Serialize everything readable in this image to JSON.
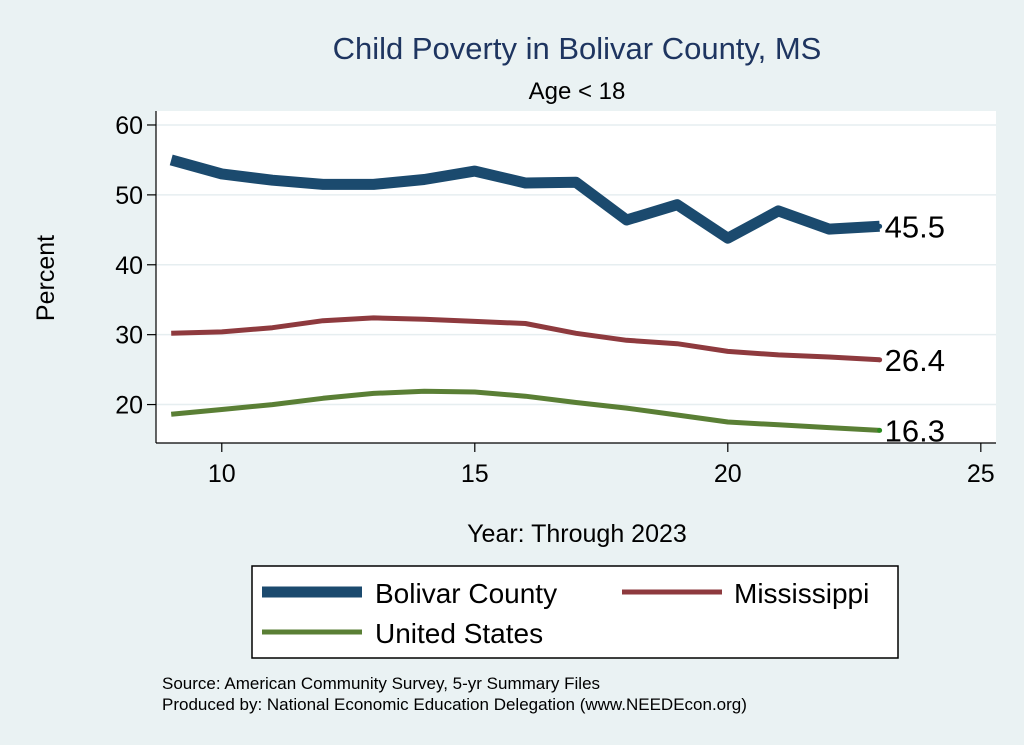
{
  "chart_data": {
    "type": "line",
    "title": "Child Poverty in Bolivar County, MS",
    "subtitle": "Age < 18",
    "xlabel": "Year: Through 2023",
    "ylabel": "Percent",
    "xlim": [
      8.7,
      25.3
    ],
    "ylim": [
      14.5,
      62
    ],
    "xticks": [
      10,
      15,
      20,
      25
    ],
    "yticks": [
      20,
      30,
      40,
      50,
      60
    ],
    "grid": true,
    "legend_position": "bottom",
    "x": [
      9,
      10,
      11,
      12,
      13,
      14,
      15,
      16,
      17,
      18,
      19,
      20,
      21,
      22,
      23
    ],
    "series": [
      {
        "name": "Bolivar County",
        "color": "#1b4a6e",
        "values": [
          55.0,
          53.0,
          52.1,
          51.5,
          51.5,
          52.2,
          53.4,
          51.7,
          51.8,
          46.4,
          48.6,
          43.8,
          47.7,
          45.1,
          45.5
        ],
        "end_label": "45.5"
      },
      {
        "name": "Mississippi",
        "color": "#8e3a3e",
        "values": [
          30.2,
          30.4,
          31.0,
          32.0,
          32.4,
          32.2,
          31.9,
          31.6,
          30.2,
          29.2,
          28.7,
          27.6,
          27.1,
          26.8,
          26.4
        ],
        "end_label": "26.4"
      },
      {
        "name": "United States",
        "color": "#5a7f35",
        "values": [
          18.6,
          19.3,
          20.0,
          20.9,
          21.6,
          21.9,
          21.8,
          21.2,
          20.3,
          19.5,
          18.5,
          17.5,
          17.1,
          16.7,
          16.3
        ],
        "end_label": "16.3"
      }
    ]
  },
  "notes": {
    "source": "Source: American Community Survey, 5-yr Summary Files",
    "produced": "Produced by: National Economic Education Delegation (www.NEEDEcon.org)"
  }
}
